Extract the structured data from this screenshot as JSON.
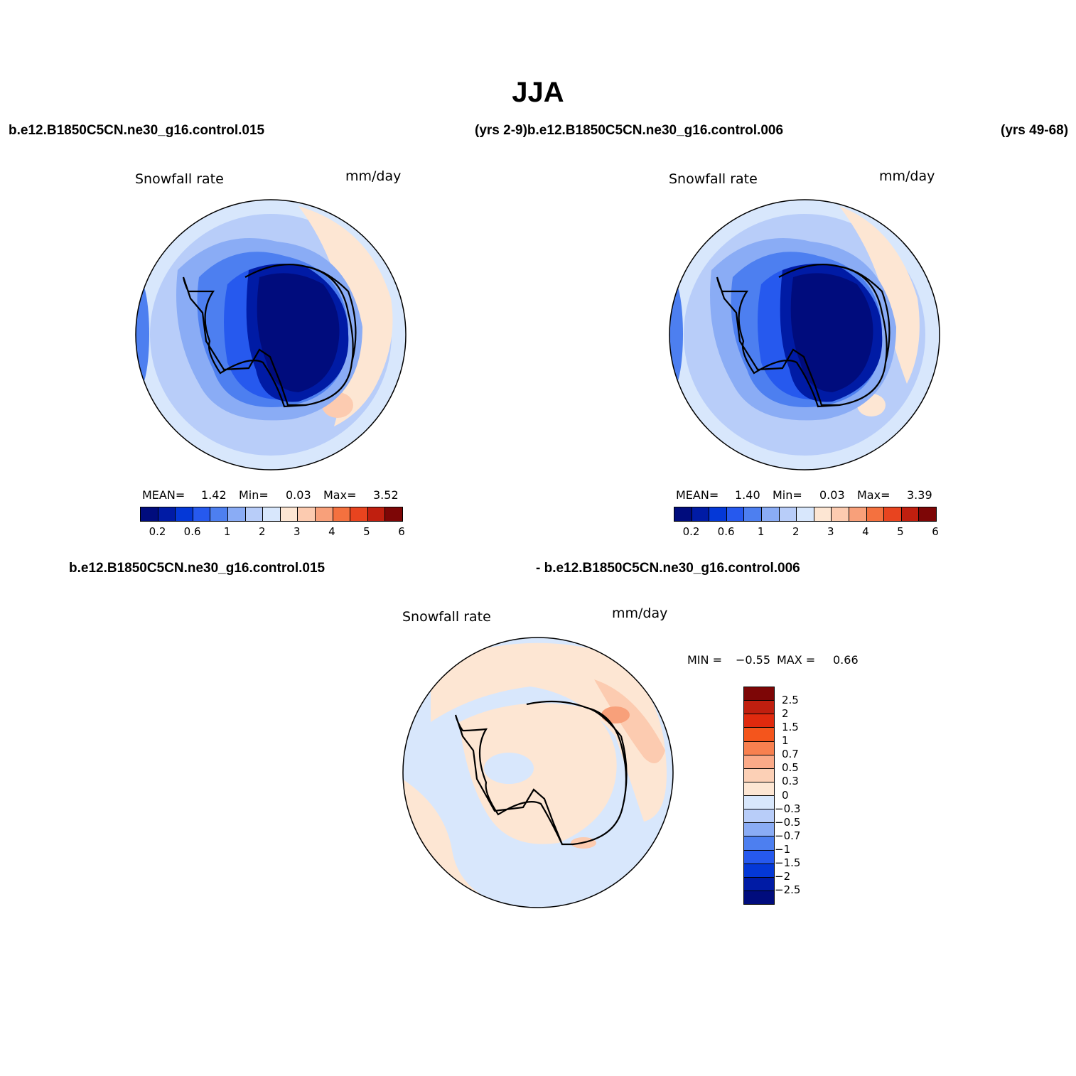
{
  "title": "JJA",
  "headers": {
    "left": "b.e12.B1850C5CN.ne30_g16.control.015",
    "middle": "(yrs 2-9)b.e12.B1850C5CN.ne30_g16.control.006",
    "right": "(yrs 49-68)",
    "diff_left": "b.e12.B1850C5CN.ne30_g16.control.015",
    "diff_right": "- b.e12.B1850C5CN.ne30_g16.control.006"
  },
  "panels": [
    {
      "field": "Snowfall rate",
      "units": "mm/day",
      "mean_label": "MEAN=",
      "mean": "1.42",
      "min_label": "Min=",
      "min": "0.03",
      "max_label": "Max=",
      "max": "3.52"
    },
    {
      "field": "Snowfall rate",
      "units": "mm/day",
      "mean_label": "MEAN=",
      "mean": "1.40",
      "min_label": "Min=",
      "min": "0.03",
      "max_label": "Max=",
      "max": "3.39"
    }
  ],
  "diff_panel": {
    "field": "Snowfall rate",
    "units": "mm/day",
    "min_label": "MIN =",
    "min": "−0.55",
    "max_label": "MAX =",
    "max": "0.66"
  },
  "abs_colorbar": {
    "colors": [
      "#000c7d",
      "#001ba5",
      "#0438d7",
      "#2659ee",
      "#4d7ff0",
      "#8aacf5",
      "#b8cdf9",
      "#d8e7fc",
      "#fde6d3",
      "#fccbb0",
      "#f8a07a",
      "#f4713f",
      "#e8441f",
      "#c01f0f",
      "#7d0606"
    ],
    "tick_labels": [
      "0.2",
      "0.6",
      "1",
      "2",
      "3",
      "4",
      "5",
      "6"
    ]
  },
  "diff_colorbar": {
    "colors_top_to_bottom": [
      "#7d0606",
      "#c01f0f",
      "#e02a0e",
      "#f4551c",
      "#f8804f",
      "#fbaa88",
      "#fcd0b6",
      "#fde6d3",
      "#d8e7fc",
      "#b8cdf9",
      "#8aacf5",
      "#4d7ff0",
      "#2659ee",
      "#0438d7",
      "#001ba5",
      "#000c7d"
    ],
    "labels": [
      "2.5",
      "2",
      "1.5",
      "1",
      "0.7",
      "0.5",
      "0.3",
      "0",
      "−0.3",
      "−0.5",
      "−0.7",
      "−1",
      "−1.5",
      "−2",
      "−2.5"
    ]
  },
  "map_data": {
    "projection": "south-polar-stereographic",
    "region": "Antarctica / Southern Ocean",
    "abs_pattern": "highest snowfall values over Southern Ocean rim (blue shades 1–2 mm/day), lowest over Antarctic interior (dark blue <0.2); light orange patches (2–3 mm/day) east of Antarctica",
    "diff_pattern": "mostly near zero (light blue / light orange) with positive patch (0.3–0.7) northeast of Antarctica"
  }
}
